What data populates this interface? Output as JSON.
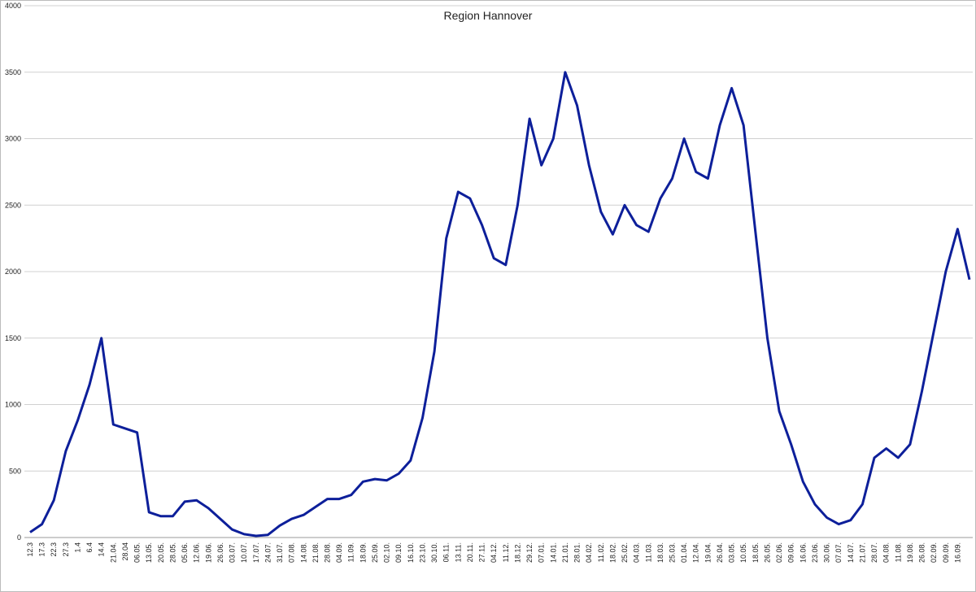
{
  "chart_data": {
    "type": "line",
    "title": "Region Hannover",
    "categories": [
      "12.3",
      "17.3",
      "22.3",
      "27.3",
      "1.4",
      "6.4",
      "14.4",
      "21.04.",
      "28.04",
      "06.05.",
      "13.05.",
      "20.05.",
      "28.05.",
      "05.06.",
      "12.06.",
      "19.06.",
      "26.06.",
      "03.07.",
      "10.07.",
      "17.07.",
      "24.07.",
      "31.07.",
      "07.08.",
      "14.08.",
      "21.08.",
      "28.08.",
      "04.09.",
      "11.09.",
      "18.09.",
      "25.09.",
      "02.10.",
      "09.10.",
      "16.10.",
      "23.10.",
      "30.10.",
      "06.11.",
      "13.11.",
      "20.11.",
      "27.11.",
      "04.12.",
      "11.12.",
      "18.12.",
      "29.12.",
      "07.01.",
      "14.01.",
      "21.01.",
      "28.01.",
      "04.02.",
      "11.02.",
      "18.02.",
      "25.02.",
      "04.03.",
      "11.03.",
      "18.03.",
      "25.03.",
      "01.04.",
      "12.04.",
      "19.04.",
      "26.04.",
      "03.05.",
      "10.05.",
      "18.05.",
      "26.05.",
      "02.06.",
      "09.06.",
      "16.06.",
      "23.06.",
      "30.06.",
      "07.07.",
      "14.07.",
      "21.07.",
      "28.07.",
      "04.08.",
      "11.08.",
      "19.08.",
      "26.08.",
      "02.09.",
      "09.09.",
      "16.09.",
      null
    ],
    "series": [
      {
        "name": "Region Hannover",
        "color": "#0d1f9a",
        "values": [
          40,
          100,
          280,
          650,
          880,
          1150,
          1500,
          850,
          820,
          790,
          190,
          160,
          160,
          270,
          280,
          220,
          140,
          60,
          25,
          12,
          20,
          90,
          140,
          170,
          230,
          290,
          290,
          320,
          420,
          440,
          430,
          480,
          580,
          900,
          1400,
          2250,
          2600,
          2550,
          2350,
          2100,
          2050,
          2500,
          3150,
          2800,
          3000,
          3500,
          3250,
          2800,
          2450,
          2280,
          2500,
          2350,
          2300,
          2550,
          2700,
          3000,
          2750,
          2700,
          3100,
          3380,
          3100,
          2300,
          1500,
          950,
          700,
          420,
          250,
          150,
          100,
          130,
          250,
          600,
          670,
          600,
          700,
          1100,
          1550,
          2000,
          2320,
          1940
        ]
      }
    ],
    "ylim": [
      0,
      4000
    ],
    "yticks": [
      0,
      500,
      1000,
      1500,
      2000,
      2500,
      3000,
      3500,
      4000
    ],
    "grid": true
  }
}
